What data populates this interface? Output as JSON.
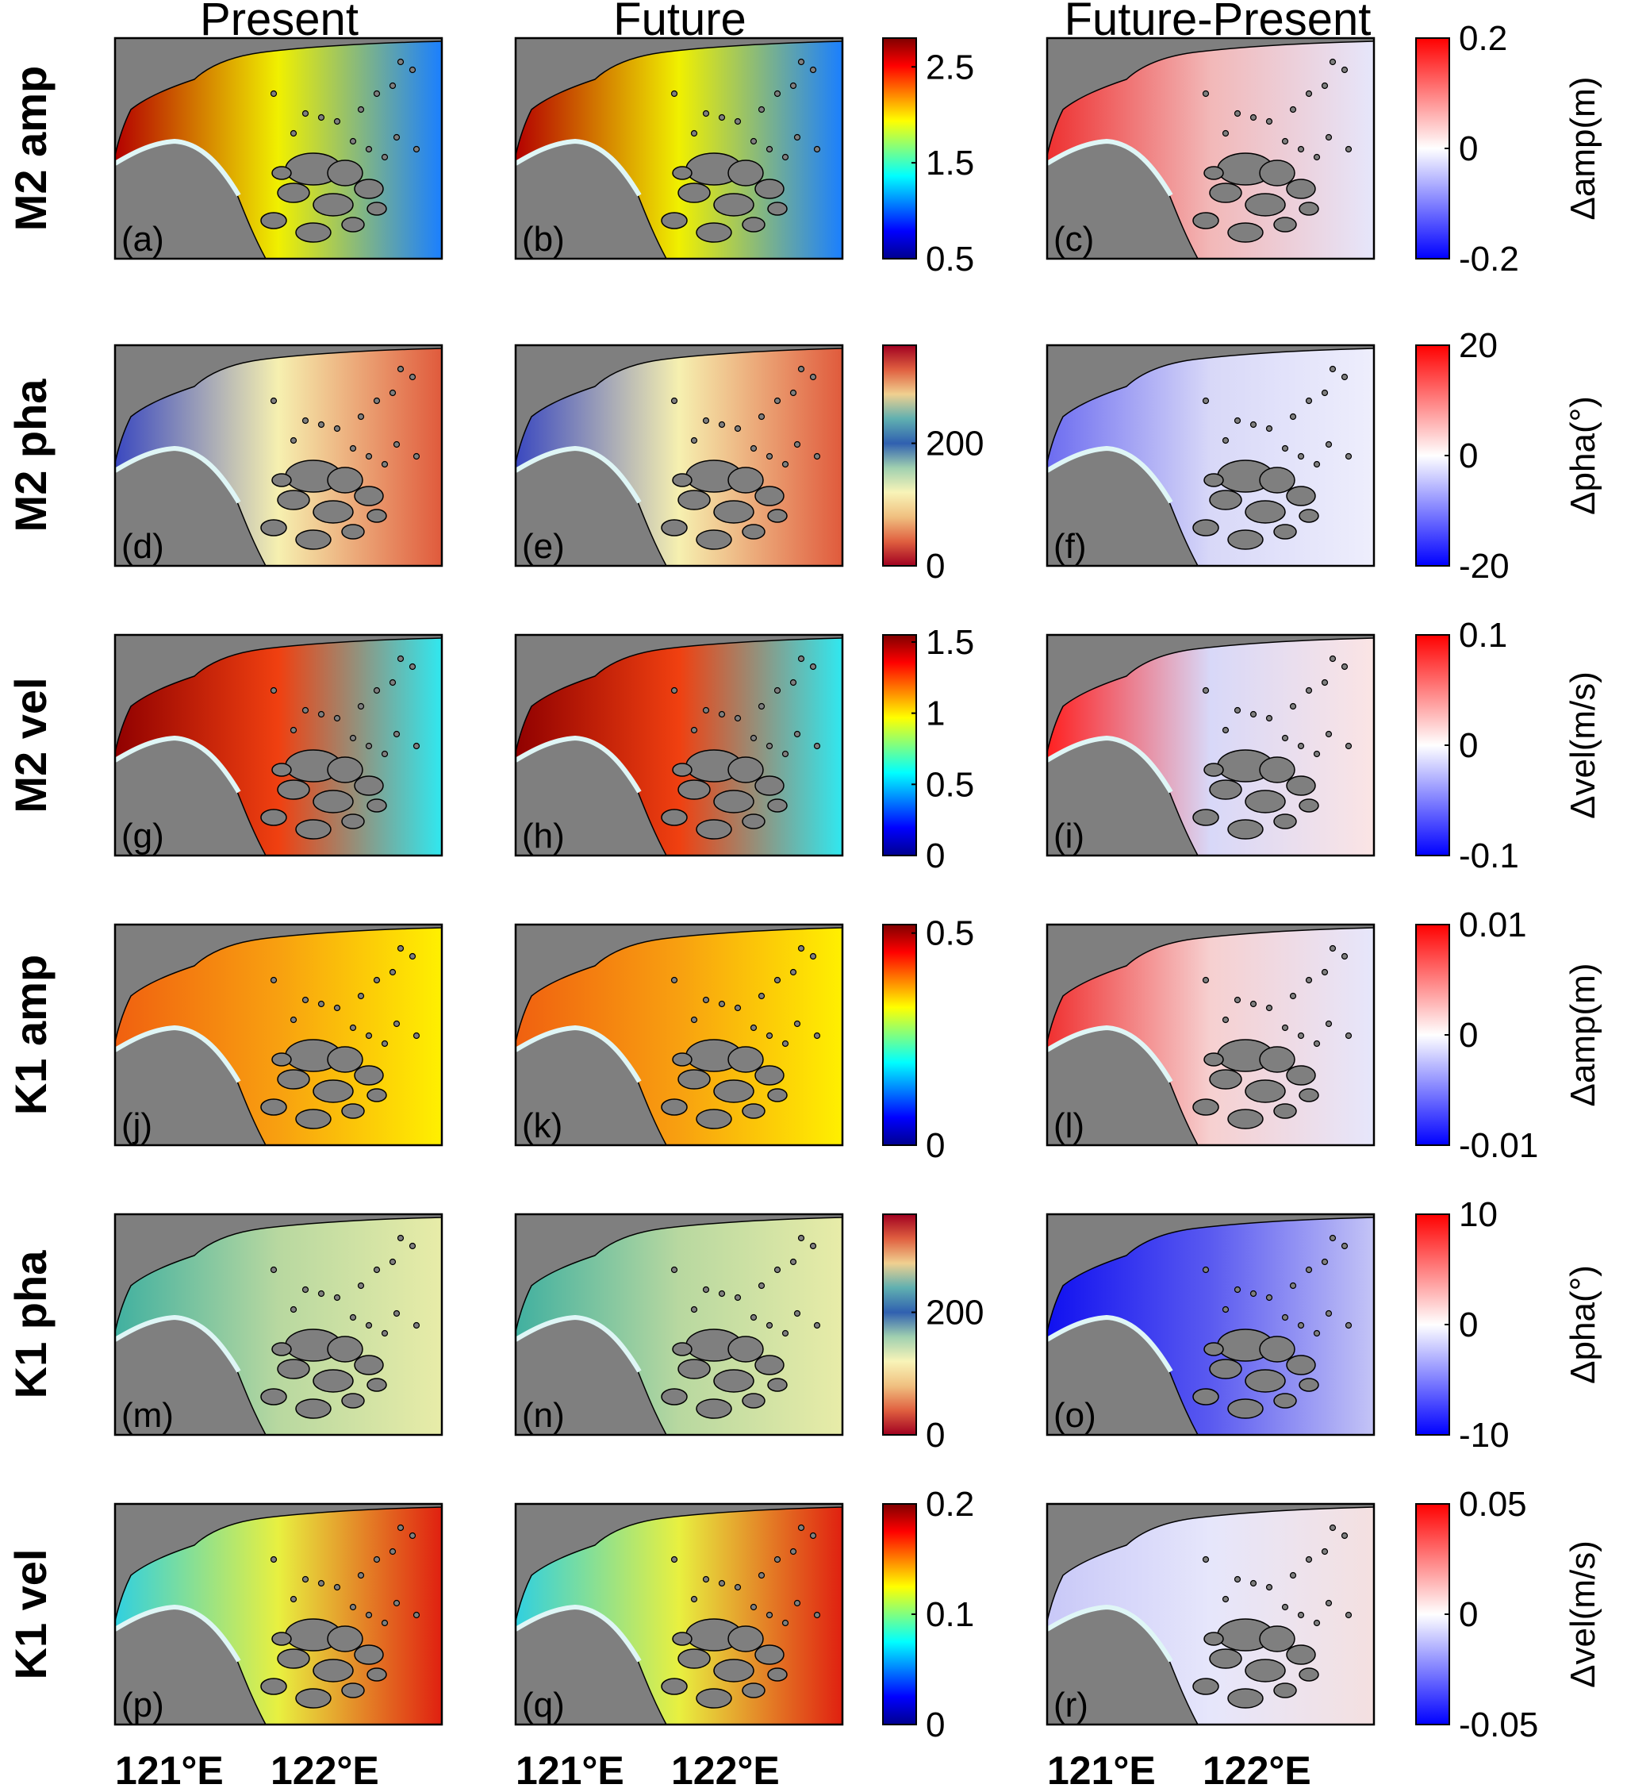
{
  "column_titles": [
    "Present",
    "Future",
    "Future-Present"
  ],
  "rows": [
    {
      "label": "M2 amp",
      "panels": [
        "(a)",
        "(b)",
        "(c)"
      ],
      "abs_colorbar": {
        "colormap": "jet",
        "ticks": [
          "2.5",
          "1.5",
          "0.5"
        ],
        "min": 0.5,
        "max": 2.8
      },
      "diff_colorbar": {
        "ticks": [
          "0.2",
          "0",
          "-0.2"
        ],
        "label": "Δamp(m)"
      },
      "abs_field": {
        "left": "#b40000",
        "mid": "#f0f000",
        "right": "#1a7fff"
      },
      "diff_field": {
        "left": "#ee3030",
        "mid": "#f2b8b8",
        "right": "#e6e6fb"
      }
    },
    {
      "label": "M2 pha",
      "panels": [
        "(d)",
        "(e)",
        "(f)"
      ],
      "abs_colorbar": {
        "colormap": "cyclic",
        "ticks": [
          "200",
          "0"
        ],
        "min": 0,
        "max": 360
      },
      "diff_colorbar": {
        "ticks": [
          "20",
          "0",
          "-20"
        ],
        "label": "Δpha(°)"
      },
      "abs_field": {
        "left": "#3a48c0",
        "mid": "#f6f0b0",
        "right": "#e05a3c"
      },
      "diff_field": {
        "left": "#6c6cf0",
        "mid": "#d8d8f8",
        "right": "#eeeefc"
      }
    },
    {
      "label": "M2 vel",
      "panels": [
        "(g)",
        "(h)",
        "(i)"
      ],
      "abs_colorbar": {
        "colormap": "jet",
        "ticks": [
          "1.5",
          "1",
          "0.5",
          "0"
        ],
        "min": 0,
        "max": 1.55
      },
      "diff_colorbar": {
        "ticks": [
          "0.1",
          "0",
          "-0.1"
        ],
        "label": "Δvel(m/s)"
      },
      "abs_field": {
        "left": "#900000",
        "mid": "#f04010",
        "right": "#30e8f0"
      },
      "diff_field": {
        "left": "#ff2020",
        "mid": "#d8d8f8",
        "right": "#fbe4e4"
      }
    },
    {
      "label": "K1 amp",
      "panels": [
        "(j)",
        "(k)",
        "(l)"
      ],
      "abs_colorbar": {
        "colormap": "jet",
        "ticks": [
          "0.5",
          "0"
        ],
        "min": 0,
        "max": 0.52
      },
      "diff_colorbar": {
        "ticks": [
          "0.01",
          "0",
          "-0.01"
        ],
        "label": "Δamp(m)"
      },
      "abs_field": {
        "left": "#f06010",
        "mid": "#f8a010",
        "right": "#fff000"
      },
      "diff_field": {
        "left": "#f03030",
        "mid": "#f6d0d0",
        "right": "#e6e6fb"
      }
    },
    {
      "label": "K1 pha",
      "panels": [
        "(m)",
        "(n)",
        "(o)"
      ],
      "abs_colorbar": {
        "colormap": "cyclic",
        "ticks": [
          "200",
          "0"
        ],
        "min": 0,
        "max": 360
      },
      "diff_colorbar": {
        "ticks": [
          "10",
          "0",
          "-10"
        ],
        "label": "Δpha(°)"
      },
      "abs_field": {
        "left": "#40b0a0",
        "mid": "#b8d8a0",
        "right": "#e8eca8"
      },
      "diff_field": {
        "left": "#1010f0",
        "mid": "#5a5af0",
        "right": "#c4c4f6"
      }
    },
    {
      "label": "K1 vel",
      "panels": [
        "(p)",
        "(q)",
        "(r)"
      ],
      "abs_colorbar": {
        "colormap": "jet",
        "ticks": [
          "0.2",
          "0.1",
          "0"
        ],
        "min": 0,
        "max": 0.2
      },
      "diff_colorbar": {
        "ticks": [
          "0.05",
          "0",
          "-0.05"
        ],
        "label": "Δvel(m/s)"
      },
      "abs_field": {
        "left": "#30d0e0",
        "mid": "#e8f040",
        "right": "#e02010"
      },
      "diff_field": {
        "left": "#c8c8f8",
        "mid": "#e6e6fb",
        "right": "#f4e0e0"
      }
    }
  ],
  "longitude_labels": [
    "121°E",
    "122°E"
  ],
  "land_color": "#7f7f7f"
}
